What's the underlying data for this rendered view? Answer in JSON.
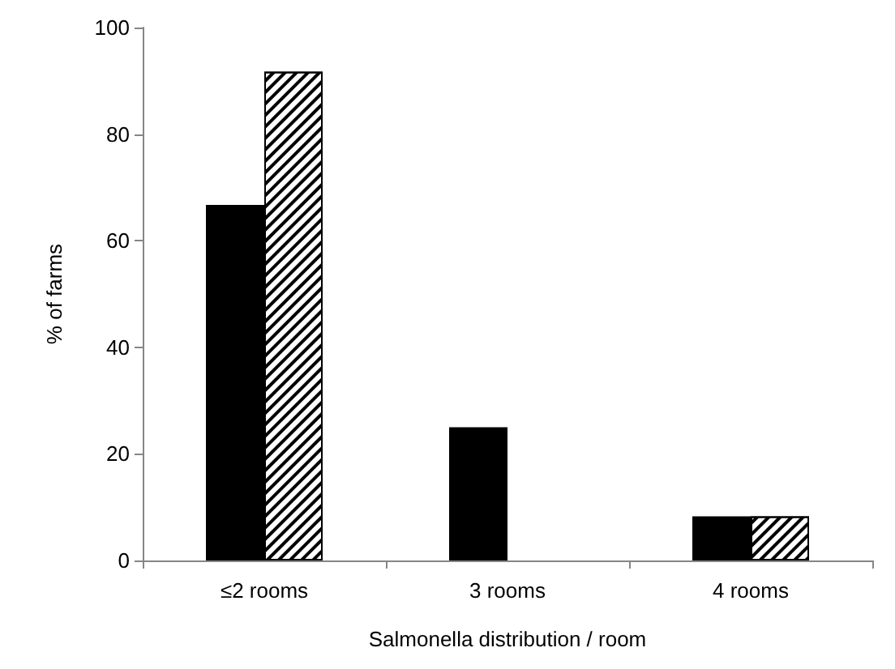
{
  "chart_data": {
    "type": "bar",
    "xlabel": "Salmonella distribution / room",
    "ylabel": "% of farms",
    "categories": [
      "≤2 rooms",
      "3 rooms",
      "4 rooms"
    ],
    "series": [
      {
        "color": "#000000",
        "values": [
          66.7,
          25,
          8.3
        ]
      },
      {
        "color": "#ffffff",
        "values": [
          91.7,
          0,
          8.3
        ]
      }
    ],
    "ylim": [
      0,
      100
    ],
    "yticks": [
      0,
      20,
      40,
      60,
      80,
      100
    ],
    "grid": false
  }
}
